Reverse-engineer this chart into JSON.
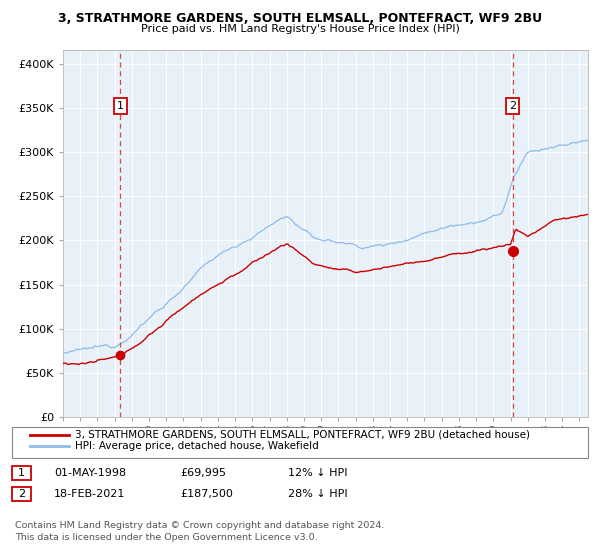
{
  "title1": "3, STRATHMORE GARDENS, SOUTH ELMSALL, PONTEFRACT, WF9 2BU",
  "title2": "Price paid vs. HM Land Registry's House Price Index (HPI)",
  "legend_line1": "3, STRATHMORE GARDENS, SOUTH ELMSALL, PONTEFRACT, WF9 2BU (detached house)",
  "legend_line2": "HPI: Average price, detached house, Wakefield",
  "footnote1": "Contains HM Land Registry data © Crown copyright and database right 2024.",
  "footnote2": "This data is licensed under the Open Government Licence v3.0.",
  "marker1_label": "1",
  "marker1_date": "01-MAY-1998",
  "marker1_price": "£69,995",
  "marker1_hpi": "12% ↓ HPI",
  "marker1_x": 1998.33,
  "marker1_y": 69995,
  "marker2_label": "2",
  "marker2_date": "18-FEB-2021",
  "marker2_price": "£187,500",
  "marker2_hpi": "28% ↓ HPI",
  "marker2_x": 2021.12,
  "marker2_y": 187500,
  "background_color": "#e8f0f8",
  "fig_background": "#ffffff",
  "red_line_color": "#cc0000",
  "blue_line_color": "#90bce8",
  "dashed_line_color": "#dd4444",
  "marker_color": "#cc0000",
  "grid_color": "#ffffff",
  "label_box_color": "#cc0000",
  "yticks": [
    0,
    50000,
    100000,
    150000,
    200000,
    250000,
    300000,
    350000,
    400000
  ],
  "ylim": [
    0,
    415000
  ],
  "xlim_start": 1995.0,
  "xlim_end": 2025.5
}
